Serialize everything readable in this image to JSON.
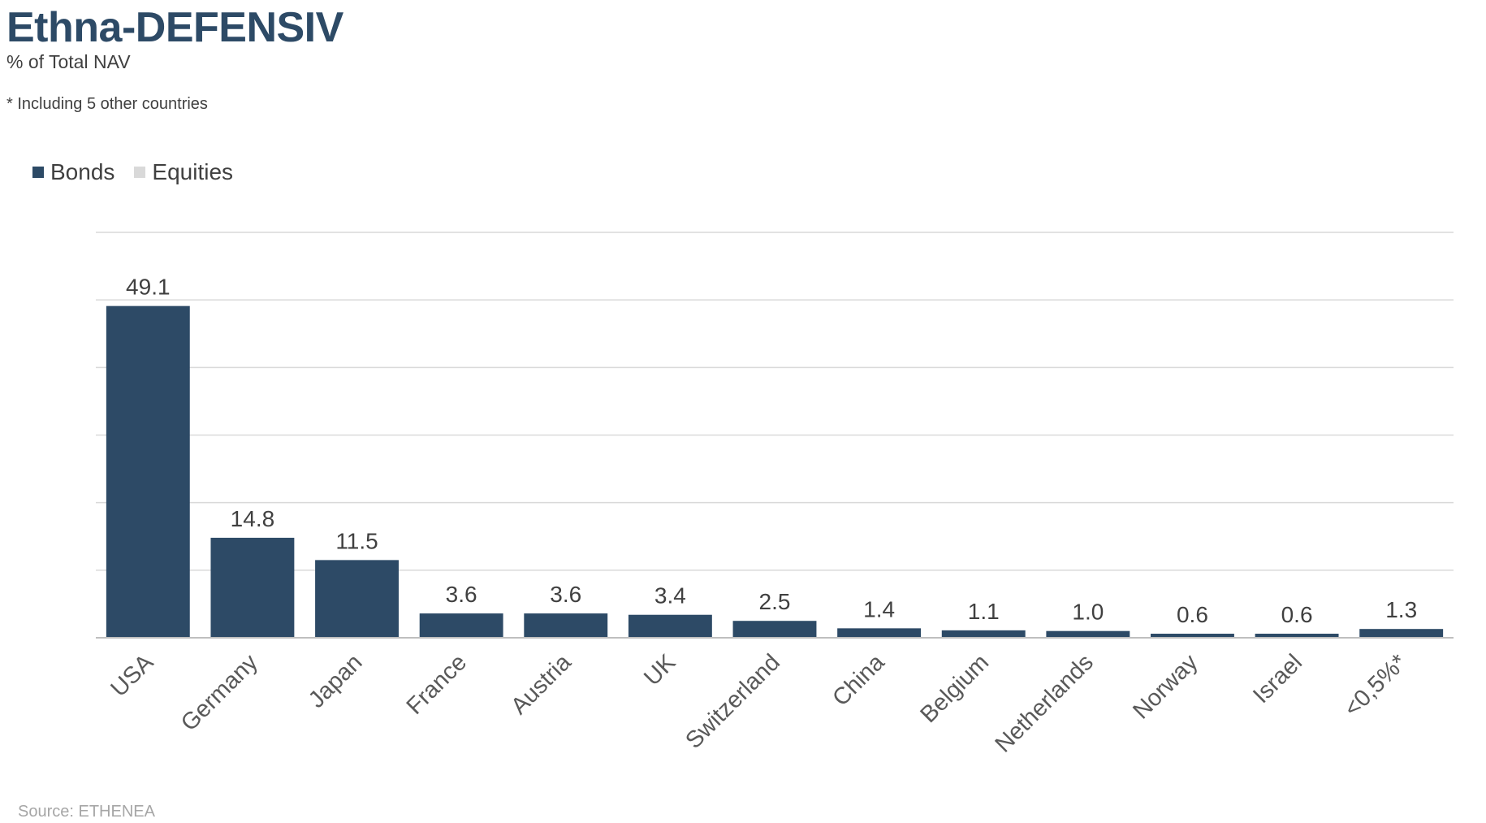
{
  "header": {
    "title": "Ethna-DEFENSIV",
    "subtitle": "% of Total NAV",
    "footnote": "* Including 5 other countries"
  },
  "legend": {
    "items": [
      {
        "label": "Bonds",
        "color": "#2d4a66"
      },
      {
        "label": "Equities",
        "color": "#d9d9d9"
      }
    ]
  },
  "footer": {
    "source": "Source: ETHENEA"
  },
  "colors": {
    "bonds": "#2d4a66",
    "equities": "#d9d9d9",
    "gridline": "#d9d9d9",
    "axis": "#bfbfbf"
  },
  "chart_data": {
    "type": "bar",
    "title": "Ethna-DEFENSIV",
    "subtitle": "% of Total NAV",
    "categories": [
      "USA",
      "Germany",
      "Japan",
      "France",
      "Austria",
      "UK",
      "Switzerland",
      "China",
      "Belgium",
      "Netherlands",
      "Norway",
      "Israel",
      "<0,5%*"
    ],
    "series": [
      {
        "name": "Bonds",
        "values": [
          49.1,
          14.8,
          11.5,
          3.6,
          3.6,
          3.4,
          2.5,
          1.4,
          1.1,
          1.0,
          0.6,
          0.6,
          1.3
        ],
        "labels": [
          "49.1",
          "14.8",
          "11.5",
          "3.6",
          "3.6",
          "3.4",
          "2.5",
          "1.4",
          "1.1",
          "1.0",
          "0.6",
          "0.6",
          "1.3"
        ]
      },
      {
        "name": "Equities",
        "values": [
          0,
          0,
          0,
          0,
          0,
          0,
          0,
          0,
          0,
          0,
          0,
          0,
          0
        ]
      }
    ],
    "ylim": [
      0,
      60
    ],
    "yticks": [
      0,
      10,
      20,
      30,
      40,
      50,
      60
    ],
    "grid": true,
    "legend": "top-left",
    "xlabel": "",
    "ylabel": ""
  }
}
